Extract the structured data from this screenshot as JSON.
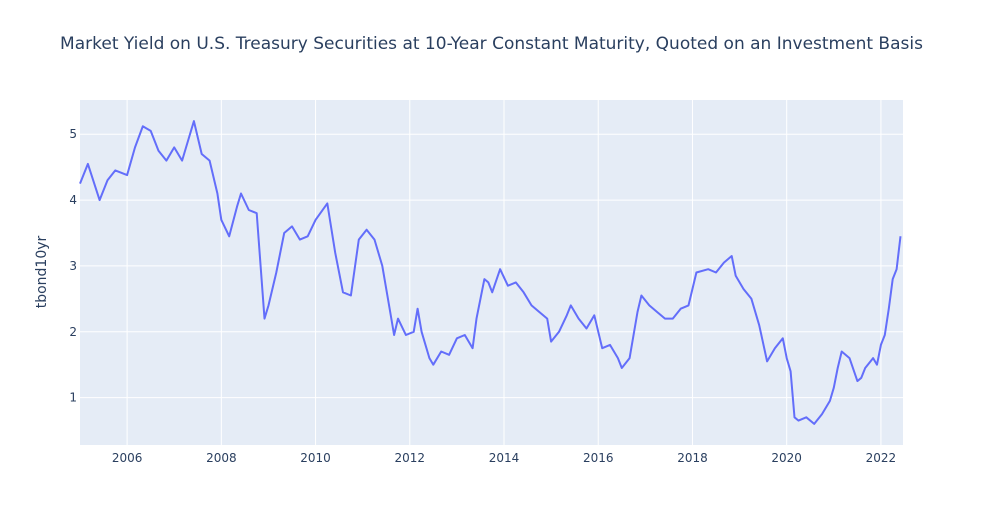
{
  "chart_data": {
    "type": "line",
    "title": "Market Yield on U.S. Treasury Securities at 10-Year Constant Maturity, Quoted on an Investment Basis",
    "xlabel": "",
    "ylabel": "tbond10yr",
    "xlim": [
      "2005-01-01",
      "2022-06-20"
    ],
    "ylim": [
      0.28,
      5.52
    ],
    "x_ticks": [
      "2006",
      "2008",
      "2010",
      "2012",
      "2014",
      "2016",
      "2018",
      "2020",
      "2022"
    ],
    "y_ticks": [
      1,
      2,
      3,
      4,
      5
    ],
    "grid": true,
    "legend": "none",
    "colors": {
      "line": "#636efa",
      "plot_bg": "#e5ecf6",
      "grid": "#ffffff",
      "text": "#2a3f5f"
    },
    "series": [
      {
        "x": [
          "2005-01",
          "2005-03",
          "2005-06",
          "2005-08",
          "2005-10",
          "2006-01",
          "2006-03",
          "2006-05",
          "2006-07",
          "2006-09",
          "2006-11",
          "2007-01",
          "2007-03",
          "2007-06",
          "2007-08",
          "2007-10",
          "2007-12",
          "2008-01",
          "2008-03",
          "2008-05",
          "2008-06",
          "2008-08",
          "2008-10",
          "2008-12",
          "2009-01",
          "2009-03",
          "2009-05",
          "2009-07",
          "2009-09",
          "2009-11",
          "2010-01",
          "2010-04",
          "2010-06",
          "2010-08",
          "2010-10",
          "2010-12",
          "2011-02",
          "2011-04",
          "2011-06",
          "2011-08",
          "2011-09",
          "2011-10",
          "2011-12",
          "2012-02",
          "2012-03",
          "2012-04",
          "2012-06",
          "2012-07",
          "2012-09",
          "2012-11",
          "2013-01",
          "2013-03",
          "2013-05",
          "2013-06",
          "2013-08",
          "2013-09",
          "2013-10",
          "2013-12",
          "2014-02",
          "2014-04",
          "2014-06",
          "2014-08",
          "2014-10",
          "2014-12",
          "2015-01",
          "2015-03",
          "2015-05",
          "2015-06",
          "2015-08",
          "2015-10",
          "2015-12",
          "2016-02",
          "2016-04",
          "2016-06",
          "2016-07",
          "2016-09",
          "2016-11",
          "2016-12",
          "2017-02",
          "2017-04",
          "2017-06",
          "2017-08",
          "2017-10",
          "2017-12",
          "2018-02",
          "2018-05",
          "2018-07",
          "2018-09",
          "2018-11",
          "2018-12",
          "2019-02",
          "2019-04",
          "2019-06",
          "2019-08",
          "2019-10",
          "2019-12",
          "2020-01",
          "2020-02",
          "2020-03",
          "2020-04",
          "2020-06",
          "2020-08",
          "2020-10",
          "2020-12",
          "2021-01",
          "2021-02",
          "2021-03",
          "2021-05",
          "2021-07",
          "2021-08",
          "2021-09",
          "2021-11",
          "2021-12",
          "2022-01",
          "2022-02",
          "2022-03",
          "2022-04",
          "2022-05",
          "2022-06"
        ],
        "y": [
          4.25,
          4.55,
          4.0,
          4.3,
          4.45,
          4.38,
          4.8,
          5.12,
          5.05,
          4.75,
          4.6,
          4.8,
          4.6,
          5.2,
          4.7,
          4.6,
          4.1,
          3.7,
          3.45,
          3.9,
          4.1,
          3.85,
          3.8,
          2.2,
          2.4,
          2.9,
          3.5,
          3.6,
          3.4,
          3.45,
          3.7,
          3.95,
          3.2,
          2.6,
          2.55,
          3.4,
          3.55,
          3.4,
          3.0,
          2.3,
          1.95,
          2.2,
          1.95,
          2.0,
          2.35,
          2.0,
          1.6,
          1.5,
          1.7,
          1.65,
          1.9,
          1.95,
          1.75,
          2.2,
          2.8,
          2.75,
          2.6,
          2.95,
          2.7,
          2.75,
          2.6,
          2.4,
          2.3,
          2.2,
          1.85,
          2.0,
          2.25,
          2.4,
          2.2,
          2.05,
          2.25,
          1.75,
          1.8,
          1.6,
          1.45,
          1.6,
          2.3,
          2.55,
          2.4,
          2.3,
          2.2,
          2.2,
          2.35,
          2.4,
          2.9,
          2.95,
          2.9,
          3.05,
          3.15,
          2.85,
          2.65,
          2.5,
          2.1,
          1.55,
          1.75,
          1.9,
          1.6,
          1.4,
          0.7,
          0.65,
          0.7,
          0.6,
          0.75,
          0.95,
          1.15,
          1.45,
          1.7,
          1.6,
          1.25,
          1.3,
          1.45,
          1.6,
          1.5,
          1.8,
          1.95,
          2.35,
          2.8,
          2.95,
          3.45
        ]
      }
    ]
  }
}
